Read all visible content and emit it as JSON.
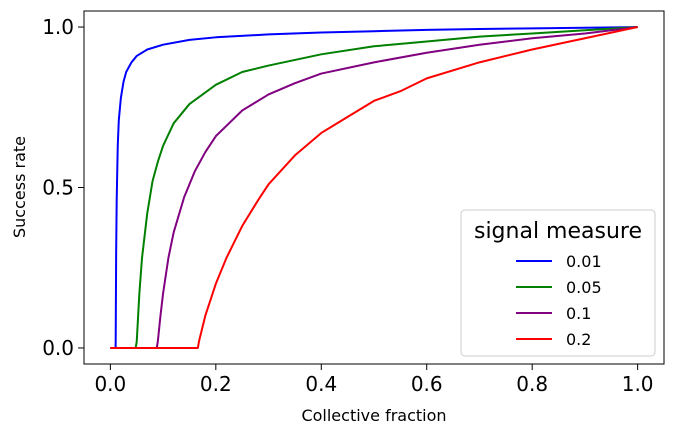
{
  "chart_data": {
    "type": "line",
    "title": "",
    "xlabel": "Collective fraction",
    "ylabel": "Success rate",
    "xlim": [
      -0.05,
      1.05
    ],
    "ylim": [
      -0.05,
      1.05
    ],
    "x_ticks": [
      0.0,
      0.2,
      0.4,
      0.6,
      0.8,
      1.0
    ],
    "x_tick_labels": [
      "0.0",
      "0.2",
      "0.4",
      "0.6",
      "0.8",
      "1.0"
    ],
    "y_ticks": [
      0.0,
      0.5,
      1.0
    ],
    "y_tick_labels": [
      "0.0",
      "0.5",
      "1.0"
    ],
    "grid": false,
    "legend": {
      "title": "signal measure",
      "position": "lower-right"
    },
    "series": [
      {
        "name": "0.01",
        "color": "#0000ff",
        "points": [
          [
            0.0,
            0.0
          ],
          [
            0.0099,
            0.0
          ],
          [
            0.0101,
            0.02
          ],
          [
            0.011,
            0.3
          ],
          [
            0.012,
            0.46
          ],
          [
            0.014,
            0.63
          ],
          [
            0.016,
            0.71
          ],
          [
            0.02,
            0.78
          ],
          [
            0.025,
            0.83
          ],
          [
            0.03,
            0.86
          ],
          [
            0.04,
            0.89
          ],
          [
            0.05,
            0.91
          ],
          [
            0.07,
            0.93
          ],
          [
            0.1,
            0.945
          ],
          [
            0.15,
            0.96
          ],
          [
            0.2,
            0.968
          ],
          [
            0.3,
            0.977
          ],
          [
            0.4,
            0.983
          ],
          [
            0.5,
            0.987
          ],
          [
            0.6,
            0.991
          ],
          [
            0.7,
            0.994
          ],
          [
            0.8,
            0.996
          ],
          [
            0.9,
            0.998
          ],
          [
            1.0,
            1.0
          ]
        ]
      },
      {
        "name": "0.05",
        "color": "#008000",
        "points": [
          [
            0.0,
            0.0
          ],
          [
            0.048,
            0.0
          ],
          [
            0.05,
            0.02
          ],
          [
            0.055,
            0.17
          ],
          [
            0.06,
            0.28
          ],
          [
            0.07,
            0.42
          ],
          [
            0.08,
            0.52
          ],
          [
            0.09,
            0.58
          ],
          [
            0.1,
            0.63
          ],
          [
            0.12,
            0.7
          ],
          [
            0.15,
            0.76
          ],
          [
            0.2,
            0.82
          ],
          [
            0.25,
            0.86
          ],
          [
            0.3,
            0.88
          ],
          [
            0.4,
            0.915
          ],
          [
            0.5,
            0.94
          ],
          [
            0.6,
            0.955
          ],
          [
            0.7,
            0.97
          ],
          [
            0.8,
            0.98
          ],
          [
            0.9,
            0.99
          ],
          [
            1.0,
            1.0
          ]
        ]
      },
      {
        "name": "0.1",
        "color": "#800080",
        "points": [
          [
            0.0,
            0.0
          ],
          [
            0.088,
            0.0
          ],
          [
            0.09,
            0.02
          ],
          [
            0.095,
            0.1
          ],
          [
            0.1,
            0.17
          ],
          [
            0.11,
            0.28
          ],
          [
            0.12,
            0.36
          ],
          [
            0.14,
            0.47
          ],
          [
            0.16,
            0.55
          ],
          [
            0.18,
            0.61
          ],
          [
            0.2,
            0.66
          ],
          [
            0.25,
            0.74
          ],
          [
            0.3,
            0.79
          ],
          [
            0.35,
            0.825
          ],
          [
            0.4,
            0.855
          ],
          [
            0.5,
            0.89
          ],
          [
            0.6,
            0.92
          ],
          [
            0.7,
            0.945
          ],
          [
            0.8,
            0.965
          ],
          [
            0.9,
            0.98
          ],
          [
            1.0,
            1.0
          ]
        ]
      },
      {
        "name": "0.2",
        "color": "#ff0000",
        "points": [
          [
            0.0,
            0.0
          ],
          [
            0.166,
            0.0
          ],
          [
            0.168,
            0.02
          ],
          [
            0.18,
            0.1
          ],
          [
            0.2,
            0.2
          ],
          [
            0.22,
            0.28
          ],
          [
            0.25,
            0.38
          ],
          [
            0.28,
            0.46
          ],
          [
            0.3,
            0.51
          ],
          [
            0.35,
            0.6
          ],
          [
            0.4,
            0.67
          ],
          [
            0.45,
            0.72
          ],
          [
            0.5,
            0.77
          ],
          [
            0.55,
            0.8
          ],
          [
            0.6,
            0.84
          ],
          [
            0.7,
            0.89
          ],
          [
            0.8,
            0.93
          ],
          [
            0.9,
            0.965
          ],
          [
            1.0,
            1.0
          ]
        ]
      }
    ]
  }
}
